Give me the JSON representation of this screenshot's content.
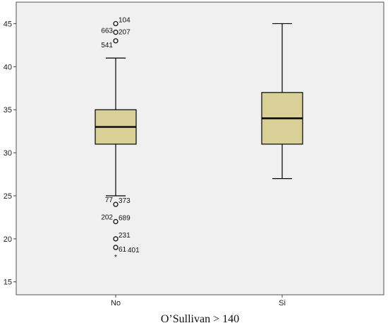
{
  "chart_data": {
    "type": "boxplot",
    "xlabel": "O’Sullivan > 140",
    "ylabel": "",
    "ylim": [
      13.5,
      47.5
    ],
    "yticks": [
      15,
      20,
      25,
      30,
      35,
      40,
      45
    ],
    "grid": false,
    "colors": {
      "box_fill": "#d8d096",
      "plot_bg": "#f0f0f0",
      "stroke": "#000000"
    },
    "boxes": [
      {
        "category": "No",
        "whisker_low": 25,
        "q1": 31,
        "median": 33,
        "q3": 35,
        "whisker_high": 41,
        "outliers": [
          {
            "value": 45,
            "marker": "circle",
            "labels": [
              {
                "text": "104",
                "side": "upper-right"
              }
            ]
          },
          {
            "value": 44,
            "marker": "circle",
            "labels": [
              {
                "text": "663",
                "side": "left"
              },
              {
                "text": "207",
                "side": "right"
              }
            ]
          },
          {
            "value": 43,
            "marker": "circle",
            "labels": [
              {
                "text": "541",
                "side": "lower-left"
              }
            ]
          },
          {
            "value": 24,
            "marker": "circle",
            "labels": [
              {
                "text": "77",
                "side": "upper-left"
              },
              {
                "text": "373",
                "side": "upper-right"
              }
            ]
          },
          {
            "value": 22,
            "marker": "circle",
            "labels": [
              {
                "text": "202",
                "side": "upper-left"
              },
              {
                "text": "689",
                "side": "upper-right"
              }
            ]
          },
          {
            "value": 20,
            "marker": "circle",
            "labels": [
              {
                "text": "231",
                "side": "upper-right"
              }
            ]
          },
          {
            "value": 19,
            "marker": "circle",
            "labels": [
              {
                "text": "61",
                "side": "right"
              },
              {
                "text": "401",
                "side": "far-right"
              }
            ]
          },
          {
            "value": 18,
            "marker": "star",
            "labels": []
          }
        ]
      },
      {
        "category": "Si",
        "whisker_low": 27,
        "q1": 31,
        "median": 34,
        "q3": 37,
        "whisker_high": 45,
        "outliers": []
      }
    ]
  }
}
